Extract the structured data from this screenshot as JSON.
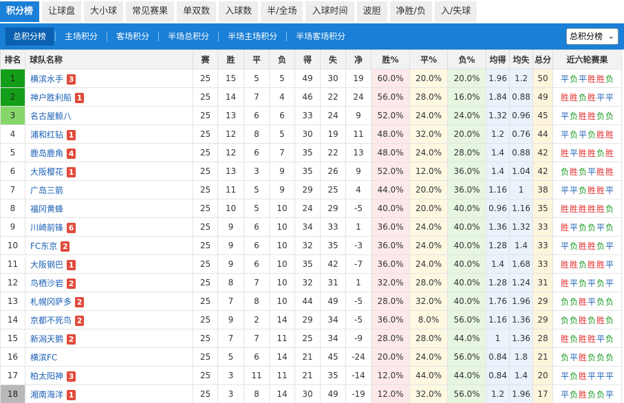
{
  "tabs": [
    "积分榜",
    "让球盘",
    "大小球",
    "常见赛果",
    "单双数",
    "入球数",
    "半/全场",
    "入球时间",
    "波胆",
    "净胜/负",
    "入/失球"
  ],
  "active_tab": 0,
  "subtabs": [
    "总积分榜",
    "主场积分",
    "客场积分",
    "半场总积分",
    "半场主场积分",
    "半场客场积分"
  ],
  "active_subtab": 0,
  "select_value": "总积分榜",
  "headers": {
    "rank": "排名",
    "team": "球队名称",
    "played": "赛",
    "win": "胜",
    "draw": "平",
    "loss": "负",
    "gf": "得",
    "ga": "失",
    "gd": "净",
    "winp": "胜%",
    "drawp": "平%",
    "lossp": "负%",
    "avg_gf": "均得",
    "avg_ga": "均失",
    "pts": "总分",
    "recent": "近六轮赛果"
  },
  "rows": [
    {
      "rank": "1",
      "team": "横滨水手",
      "badge": "3",
      "played": "25",
      "win": "15",
      "draw": "5",
      "loss": "5",
      "gf": "49",
      "ga": "30",
      "gd": "19",
      "winp": "60.0%",
      "drawp": "20.0%",
      "lossp": "20.0%",
      "avg_gf": "1.96",
      "avg_ga": "1.2",
      "pts": "50",
      "recent": "平负平胜胜负"
    },
    {
      "rank": "2",
      "team": "神户胜利船",
      "badge": "1",
      "played": "25",
      "win": "14",
      "draw": "7",
      "loss": "4",
      "gf": "46",
      "ga": "22",
      "gd": "24",
      "winp": "56.0%",
      "drawp": "28.0%",
      "lossp": "16.0%",
      "avg_gf": "1.84",
      "avg_ga": "0.88",
      "pts": "49",
      "recent": "胜胜负胜平平"
    },
    {
      "rank": "3",
      "team": "名古屋鲸八",
      "badge": "",
      "played": "25",
      "win": "13",
      "draw": "6",
      "loss": "6",
      "gf": "33",
      "ga": "24",
      "gd": "9",
      "winp": "52.0%",
      "drawp": "24.0%",
      "lossp": "24.0%",
      "avg_gf": "1.32",
      "avg_ga": "0.96",
      "pts": "45",
      "recent": "平负胜胜负负"
    },
    {
      "rank": "4",
      "team": "浦和红钻",
      "badge": "1",
      "played": "25",
      "win": "12",
      "draw": "8",
      "loss": "5",
      "gf": "30",
      "ga": "19",
      "gd": "11",
      "winp": "48.0%",
      "drawp": "32.0%",
      "lossp": "20.0%",
      "avg_gf": "1.2",
      "avg_ga": "0.76",
      "pts": "44",
      "recent": "平负平负胜胜"
    },
    {
      "rank": "5",
      "team": "鹿岛鹿角",
      "badge": "4",
      "played": "25",
      "win": "12",
      "draw": "6",
      "loss": "7",
      "gf": "35",
      "ga": "22",
      "gd": "13",
      "winp": "48.0%",
      "drawp": "24.0%",
      "lossp": "28.0%",
      "avg_gf": "1.4",
      "avg_ga": "0.88",
      "pts": "42",
      "recent": "胜平胜胜负胜"
    },
    {
      "rank": "6",
      "team": "大阪樱花",
      "badge": "1",
      "played": "25",
      "win": "13",
      "draw": "3",
      "loss": "9",
      "gf": "35",
      "ga": "26",
      "gd": "9",
      "winp": "52.0%",
      "drawp": "12.0%",
      "lossp": "36.0%",
      "avg_gf": "1.4",
      "avg_ga": "1.04",
      "pts": "42",
      "recent": "负胜负平胜胜"
    },
    {
      "rank": "7",
      "team": "广岛三箭",
      "badge": "",
      "played": "25",
      "win": "11",
      "draw": "5",
      "loss": "9",
      "gf": "29",
      "ga": "25",
      "gd": "4",
      "winp": "44.0%",
      "drawp": "20.0%",
      "lossp": "36.0%",
      "avg_gf": "1.16",
      "avg_ga": "1",
      "pts": "38",
      "recent": "平平负胜胜平"
    },
    {
      "rank": "8",
      "team": "福冈黄蜂",
      "badge": "",
      "played": "25",
      "win": "10",
      "draw": "5",
      "loss": "10",
      "gf": "24",
      "ga": "29",
      "gd": "-5",
      "winp": "40.0%",
      "drawp": "20.0%",
      "lossp": "40.0%",
      "avg_gf": "0.96",
      "avg_ga": "1.16",
      "pts": "35",
      "recent": "胜胜胜胜胜负"
    },
    {
      "rank": "9",
      "team": "川崎前锋",
      "badge": "6",
      "played": "25",
      "win": "9",
      "draw": "6",
      "loss": "10",
      "gf": "34",
      "ga": "33",
      "gd": "1",
      "winp": "36.0%",
      "drawp": "24.0%",
      "lossp": "40.0%",
      "avg_gf": "1.36",
      "avg_ga": "1.32",
      "pts": "33",
      "recent": "胜平负负平负"
    },
    {
      "rank": "10",
      "team": "FC东京",
      "badge": "2",
      "played": "25",
      "win": "9",
      "draw": "6",
      "loss": "10",
      "gf": "32",
      "ga": "35",
      "gd": "-3",
      "winp": "36.0%",
      "drawp": "24.0%",
      "lossp": "40.0%",
      "avg_gf": "1.28",
      "avg_ga": "1.4",
      "pts": "33",
      "recent": "平负胜胜负平"
    },
    {
      "rank": "11",
      "team": "大阪钢巴",
      "badge": "1",
      "played": "25",
      "win": "9",
      "draw": "6",
      "loss": "10",
      "gf": "35",
      "ga": "42",
      "gd": "-7",
      "winp": "36.0%",
      "drawp": "24.0%",
      "lossp": "40.0%",
      "avg_gf": "1.4",
      "avg_ga": "1.68",
      "pts": "33",
      "recent": "胜胜负胜胜平"
    },
    {
      "rank": "12",
      "team": "鸟栖沙岩",
      "badge": "2",
      "played": "25",
      "win": "8",
      "draw": "7",
      "loss": "10",
      "gf": "32",
      "ga": "31",
      "gd": "1",
      "winp": "32.0%",
      "drawp": "28.0%",
      "lossp": "40.0%",
      "avg_gf": "1.28",
      "avg_ga": "1.24",
      "pts": "31",
      "recent": "胜平负平负平"
    },
    {
      "rank": "13",
      "team": "札幌冈萨多",
      "badge": "2",
      "played": "25",
      "win": "7",
      "draw": "8",
      "loss": "10",
      "gf": "44",
      "ga": "49",
      "gd": "-5",
      "winp": "28.0%",
      "drawp": "32.0%",
      "lossp": "40.0%",
      "avg_gf": "1.76",
      "avg_ga": "1.96",
      "pts": "29",
      "recent": "负负胜平负负"
    },
    {
      "rank": "14",
      "team": "京都不死鸟",
      "badge": "2",
      "played": "25",
      "win": "9",
      "draw": "2",
      "loss": "14",
      "gf": "29",
      "ga": "34",
      "gd": "-5",
      "winp": "36.0%",
      "drawp": "8.0%",
      "lossp": "56.0%",
      "avg_gf": "1.16",
      "avg_ga": "1.36",
      "pts": "29",
      "recent": "负负胜负胜负"
    },
    {
      "rank": "15",
      "team": "新潟天鹅",
      "badge": "2",
      "played": "25",
      "win": "7",
      "draw": "7",
      "loss": "11",
      "gf": "25",
      "ga": "34",
      "gd": "-9",
      "winp": "28.0%",
      "drawp": "28.0%",
      "lossp": "44.0%",
      "avg_gf": "1",
      "avg_ga": "1.36",
      "pts": "28",
      "recent": "胜负胜胜平负"
    },
    {
      "rank": "16",
      "team": "横滨FC",
      "badge": "",
      "played": "25",
      "win": "5",
      "draw": "6",
      "loss": "14",
      "gf": "21",
      "ga": "45",
      "gd": "-24",
      "winp": "20.0%",
      "drawp": "24.0%",
      "lossp": "56.0%",
      "avg_gf": "0.84",
      "avg_ga": "1.8",
      "pts": "21",
      "recent": "负平胜负负负"
    },
    {
      "rank": "17",
      "team": "柏太阳神",
      "badge": "3",
      "played": "25",
      "win": "3",
      "draw": "11",
      "loss": "11",
      "gf": "21",
      "ga": "35",
      "gd": "-14",
      "winp": "12.0%",
      "drawp": "44.0%",
      "lossp": "44.0%",
      "avg_gf": "0.84",
      "avg_ga": "1.4",
      "pts": "20",
      "recent": "平负胜平平平"
    },
    {
      "rank": "18",
      "team": "湘南海洋",
      "badge": "1",
      "played": "25",
      "win": "3",
      "draw": "8",
      "loss": "14",
      "gf": "30",
      "ga": "49",
      "gd": "-19",
      "winp": "12.0%",
      "drawp": "32.0%",
      "lossp": "56.0%",
      "avg_gf": "1.2",
      "avg_ga": "1.96",
      "pts": "17",
      "recent": "平负胜负负平"
    }
  ],
  "colors": {
    "tab_active": "#1a7fd6",
    "rank_top": "#129e18",
    "rank_third": "#86d66a",
    "rank_bottom": "#b8b8b8",
    "win": "#e23232",
    "draw": "#1a5fb4",
    "loss": "#1a9a22",
    "badge": "#e04a3a"
  }
}
